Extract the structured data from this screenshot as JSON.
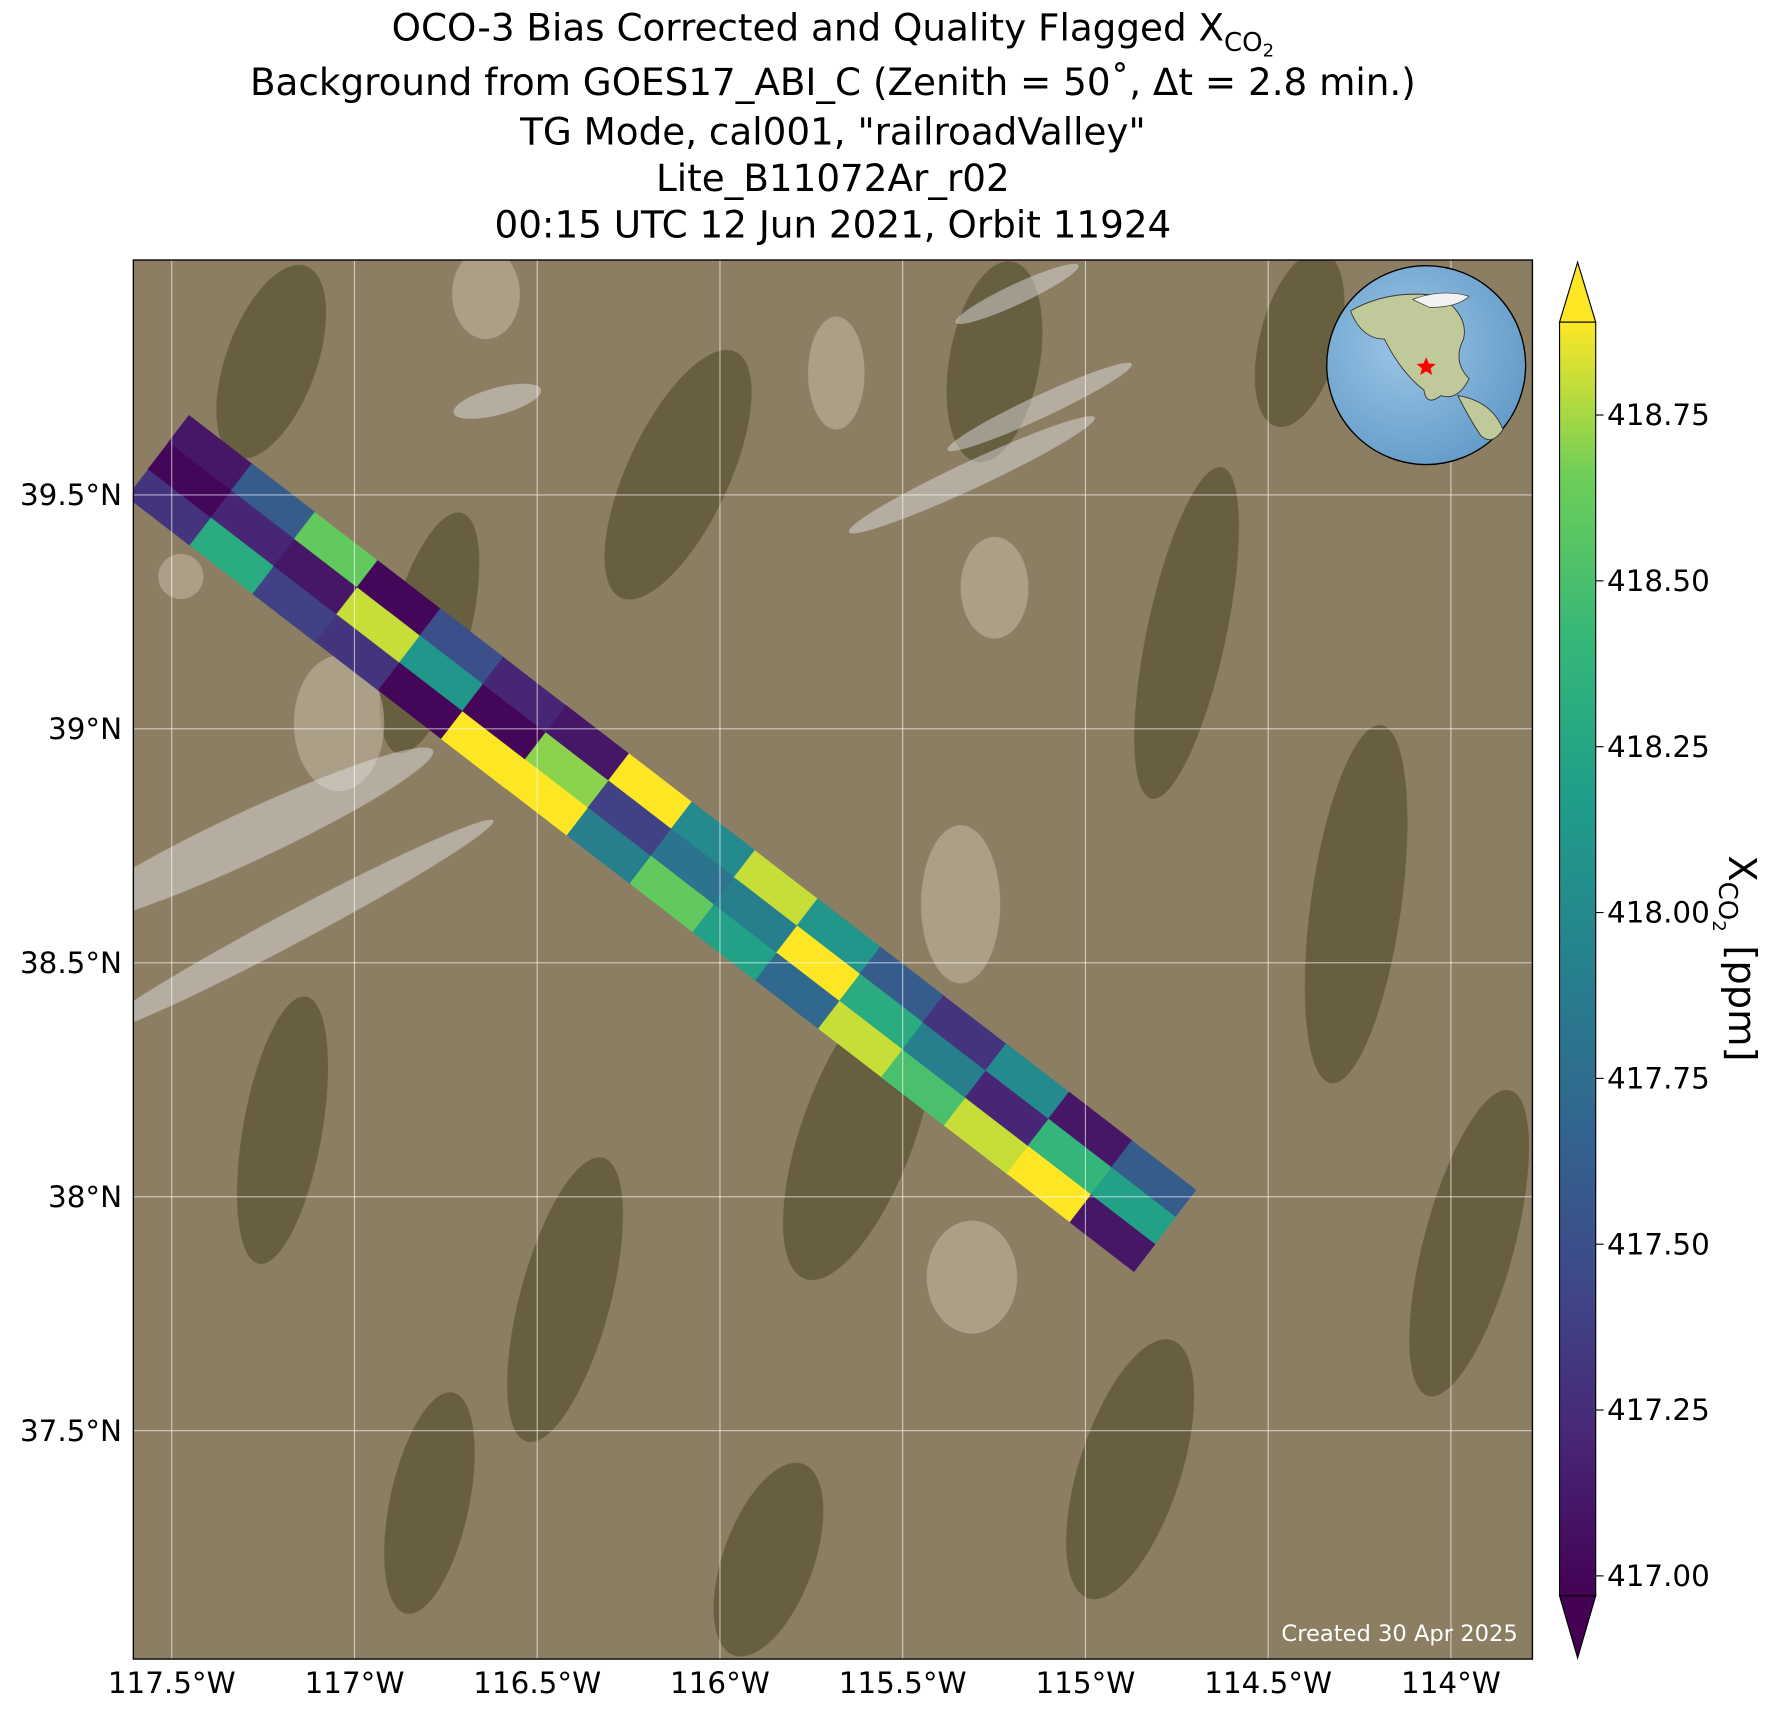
{
  "chart_data": {
    "type": "map",
    "title": {
      "line1": {
        "text": "OCO-3 Bias Corrected and Quality Flagged X",
        "sub": "CO",
        "subsub": "2"
      },
      "line2": "Background from GOES17_ABI_C (Zenith = 50˚, Δt =  2.8 min.)",
      "line3": "TG Mode, cal001, \"railroadValley\"",
      "line4": "Lite_B11072Ar_r02",
      "line5": "00:15 UTC 12 Jun 2021, Orbit 11924"
    },
    "xlim": [
      -117.605,
      -113.777
    ],
    "ylim": [
      37.012,
      40.002
    ],
    "xticks": [
      {
        "value": -117.5,
        "label": "117.5°W"
      },
      {
        "value": -117,
        "label": "117°W"
      },
      {
        "value": -116.5,
        "label": "116.5°W"
      },
      {
        "value": -116,
        "label": "116°W"
      },
      {
        "value": -115.5,
        "label": "115.5°W"
      },
      {
        "value": -115,
        "label": "115°W"
      },
      {
        "value": -114.5,
        "label": "114.5°W"
      },
      {
        "value": -114,
        "label": "114°W"
      }
    ],
    "yticks": [
      {
        "value": 37.5,
        "label": "37.5°N"
      },
      {
        "value": 38,
        "label": "38°N"
      },
      {
        "value": 38.5,
        "label": "38.5°N"
      },
      {
        "value": 39,
        "label": "39°N"
      },
      {
        "value": 39.5,
        "label": "39.5°N"
      }
    ],
    "grid": true,
    "colormap": "viridis",
    "points": {
      "lon": [
        -117.394,
        -117.45,
        -117.506,
        -117.222,
        -117.278,
        -117.334,
        -117.05,
        -117.106,
        -117.162,
        -116.878,
        -116.934,
        -116.99,
        -116.706,
        -116.762,
        -116.818,
        -116.534,
        -116.59,
        -116.646,
        -116.362,
        -116.418,
        -116.474,
        -116.19,
        -116.246,
        -116.302,
        -116.018,
        -116.074,
        -116.13,
        -115.846,
        -115.902,
        -115.958,
        -115.674,
        -115.73,
        -115.786,
        -115.502,
        -115.558,
        -115.614,
        -115.33,
        -115.386,
        -115.442,
        -115.158,
        -115.214,
        -115.27,
        -114.986,
        -115.042,
        -115.098,
        -114.814,
        -114.87,
        -114.926
      ],
      "lat": [
        39.588,
        39.53,
        39.472,
        39.485,
        39.427,
        39.369,
        39.381,
        39.323,
        39.265,
        39.278,
        39.22,
        39.162,
        39.175,
        39.117,
        39.059,
        39.071,
        39.013,
        38.955,
        38.968,
        38.91,
        38.852,
        38.865,
        38.807,
        38.749,
        38.762,
        38.704,
        38.646,
        38.658,
        38.6,
        38.542,
        38.555,
        38.497,
        38.439,
        38.452,
        38.394,
        38.336,
        38.348,
        38.29,
        38.232,
        38.245,
        38.187,
        38.129,
        38.142,
        38.084,
        38.026,
        38.038,
        37.98,
        37.922
      ],
      "values": [
        417.1,
        417.0,
        417.3,
        417.6,
        417.2,
        418.3,
        418.6,
        417.1,
        417.4,
        417.0,
        418.8,
        417.3,
        417.5,
        418.1,
        417.0,
        417.2,
        417.0,
        418.9,
        417.1,
        418.7,
        418.9,
        418.9,
        417.4,
        417.9,
        418.0,
        417.8,
        418.6,
        418.8,
        417.9,
        418.2,
        418.1,
        418.9,
        417.7,
        417.6,
        418.3,
        418.8,
        417.3,
        417.9,
        418.5,
        418.0,
        417.2,
        418.8,
        417.1,
        418.4,
        418.9,
        417.6,
        418.2,
        417.1
      ]
    },
    "colorbar": {
      "lim": [
        416.97,
        418.89
      ],
      "ticks": [
        {
          "value": 417,
          "label": "417.00"
        },
        {
          "value": 417.25,
          "label": "417.25"
        },
        {
          "value": 417.5,
          "label": "417.50"
        },
        {
          "value": 417.75,
          "label": "417.75"
        },
        {
          "value": 418,
          "label": "418.00"
        },
        {
          "value": 418.25,
          "label": "418.25"
        },
        {
          "value": 418.5,
          "label": "418.50"
        },
        {
          "value": 418.75,
          "label": "418.75"
        }
      ],
      "label": {
        "text": "X",
        "sub": "CO",
        "subsub": "2",
        "unit": "[ppm]"
      }
    },
    "footnote": "Created 30 Apr 2025"
  }
}
